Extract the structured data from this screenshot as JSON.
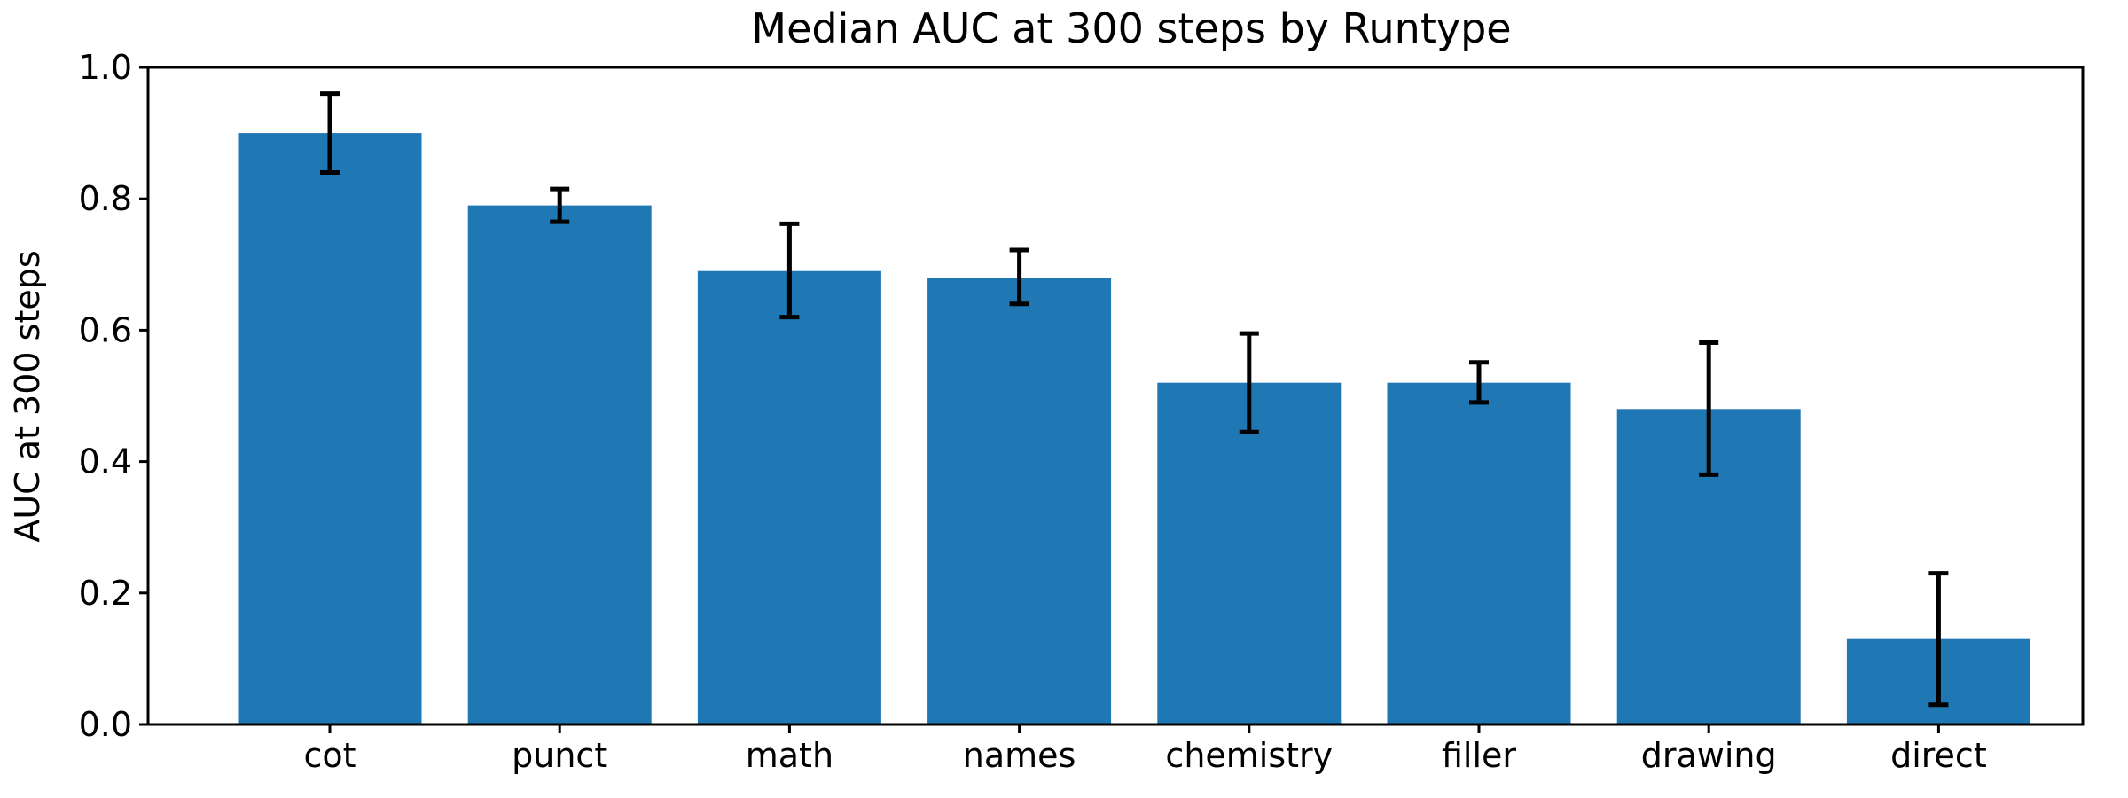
{
  "chart_data": {
    "type": "bar",
    "title": "Median AUC at 300 steps by Runtype",
    "xlabel": "",
    "ylabel": "AUC at 300 steps",
    "categories": [
      "cot",
      "punct",
      "math",
      "names",
      "chemistry",
      "filler",
      "drawing",
      "direct"
    ],
    "values": [
      0.9,
      0.79,
      0.69,
      0.68,
      0.52,
      0.52,
      0.48,
      0.13
    ],
    "error_low": [
      0.84,
      0.765,
      0.62,
      0.64,
      0.445,
      0.49,
      0.38,
      0.03
    ],
    "error_high": [
      0.96,
      0.815,
      0.762,
      0.722,
      0.595,
      0.551,
      0.581,
      0.23
    ],
    "ylim": [
      0.0,
      1.0
    ],
    "yticks": [
      0.0,
      0.2,
      0.4,
      0.6,
      0.8,
      1.0
    ],
    "ytick_labels": [
      "0.0",
      "0.2",
      "0.4",
      "0.6",
      "0.8",
      "1.0"
    ],
    "grid": false,
    "legend": "none",
    "bar_color": "#1f77b4",
    "error_color": "#000000"
  }
}
